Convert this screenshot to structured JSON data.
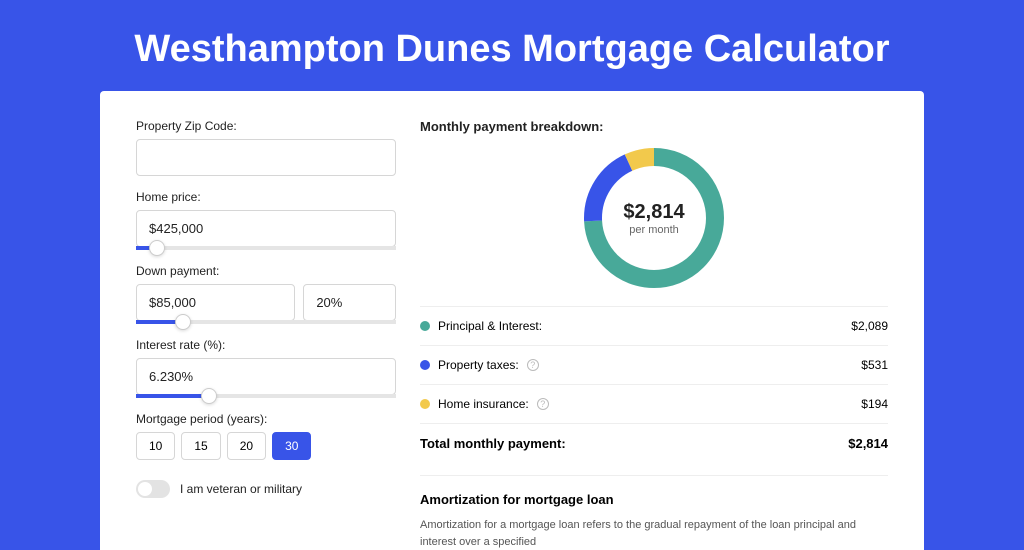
{
  "page": {
    "title": "Westhampton Dunes Mortgage Calculator"
  },
  "colors": {
    "brand": "#3854e8",
    "card_bg": "#ffffff",
    "border": "#d6d6d6",
    "text": "#222222",
    "muted": "#666666"
  },
  "form": {
    "zip": {
      "label": "Property Zip Code:",
      "value": ""
    },
    "home_price": {
      "label": "Home price:",
      "value": "$425,000",
      "slider_pct": 8
    },
    "down_payment": {
      "label": "Down payment:",
      "amount": "$85,000",
      "percent": "20%",
      "slider_pct": 18
    },
    "interest_rate": {
      "label": "Interest rate (%):",
      "value": "6.230%",
      "slider_pct": 28
    },
    "mortgage_period": {
      "label": "Mortgage period (years):",
      "options": [
        "10",
        "15",
        "20",
        "30"
      ],
      "active": "30"
    },
    "veteran": {
      "label": "I am veteran or military",
      "checked": false
    }
  },
  "breakdown": {
    "title": "Monthly payment breakdown:",
    "donut": {
      "type": "donut",
      "value": "$2,814",
      "sub": "per month",
      "size": 140,
      "thickness": 18,
      "background_color": "#ffffff",
      "segments": [
        {
          "key": "principal_interest",
          "fraction": 0.742,
          "color": "#48a999"
        },
        {
          "key": "property_taxes",
          "fraction": 0.189,
          "color": "#3854e8"
        },
        {
          "key": "home_insurance",
          "fraction": 0.069,
          "color": "#f2c94c"
        }
      ]
    },
    "items": [
      {
        "label": "Principal & Interest:",
        "value": "$2,089",
        "color": "#48a999",
        "info": false
      },
      {
        "label": "Property taxes:",
        "value": "$531",
        "color": "#3854e8",
        "info": true
      },
      {
        "label": "Home insurance:",
        "value": "$194",
        "color": "#f2c94c",
        "info": true
      }
    ],
    "total": {
      "label": "Total monthly payment:",
      "value": "$2,814"
    }
  },
  "amortization": {
    "title": "Amortization for mortgage loan",
    "text": "Amortization for a mortgage loan refers to the gradual repayment of the loan principal and interest over a specified"
  }
}
